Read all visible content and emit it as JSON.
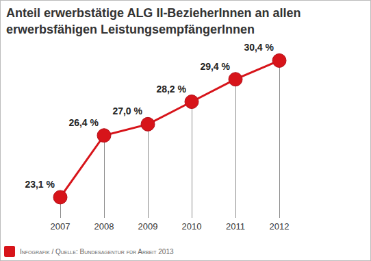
{
  "chart_data": {
    "type": "line",
    "title": "Anteil erwerbstätige ALG II-BezieherInnen an allen erwerbsfähigen LeistungsempfängerInnen",
    "categories": [
      "2007",
      "2008",
      "2009",
      "2010",
      "2011",
      "2012"
    ],
    "values": [
      23.1,
      26.4,
      27.0,
      28.2,
      29.4,
      30.4
    ],
    "value_labels": [
      "23,1 %",
      "26,4 %",
      "27,0 %",
      "28,2 %",
      "29,4 %",
      "30,4 %"
    ],
    "color": "#d7141a",
    "marker": "circle",
    "ylim": [
      22,
      31
    ],
    "data_labels": true,
    "tick_labels": "x",
    "source": "Infografik / Quelle: Bundesagentur für Arbeit 2013"
  }
}
